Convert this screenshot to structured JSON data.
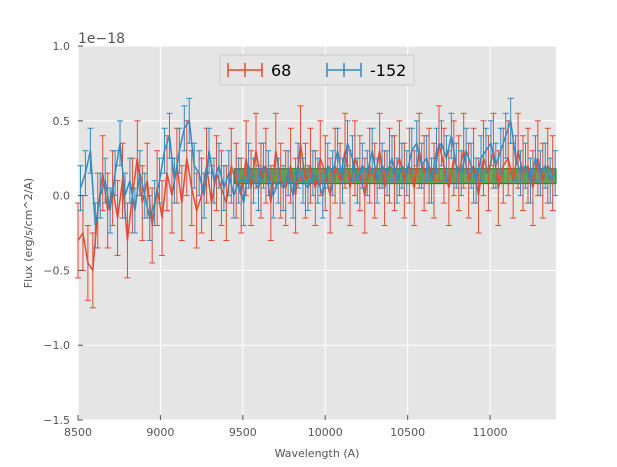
{
  "chart_data": {
    "type": "line",
    "title": "",
    "xlabel": "Wavelength (A)",
    "ylabel": "Flux (erg/s/cm^2/A)",
    "offset_text": "1e−18",
    "xlim": [
      8500,
      11400
    ],
    "ylim": [
      -1.5,
      1.0
    ],
    "xticks": [
      8500,
      9000,
      9500,
      10000,
      10500,
      11000
    ],
    "xtick_labels": [
      "8500",
      "9000",
      "9500",
      "10000",
      "10500",
      "11000"
    ],
    "yticks": [
      -1.5,
      -1.0,
      -0.5,
      0.0,
      0.5,
      1.0
    ],
    "ytick_labels": [
      "−1.5",
      "−1.0",
      "−0.5",
      "0.0",
      "0.5",
      "1.0"
    ],
    "grid": true,
    "legend_position": "top-center",
    "colors": {
      "plot_bg": "#e5e5e5",
      "grid": "#ffffff",
      "series_68": "#e24a33",
      "series_m152": "#348abd",
      "band_fill": "#2e9a2e",
      "band_edge": "#1c7a1c"
    },
    "band": {
      "x_start": 9450,
      "x_end": 11400,
      "y_low": 0.08,
      "y_high": 0.18
    },
    "series": [
      {
        "name": "68",
        "x": [
          8500,
          8530,
          8560,
          8590,
          8620,
          8650,
          8680,
          8710,
          8740,
          8770,
          8800,
          8830,
          8860,
          8890,
          8920,
          8950,
          8980,
          9010,
          9040,
          9070,
          9100,
          9130,
          9160,
          9190,
          9220,
          9250,
          9280,
          9310,
          9340,
          9370,
          9400,
          9430,
          9460,
          9490,
          9520,
          9550,
          9580,
          9610,
          9640,
          9670,
          9700,
          9730,
          9760,
          9790,
          9820,
          9850,
          9880,
          9910,
          9940,
          9970,
          10000,
          10030,
          10060,
          10090,
          10120,
          10150,
          10180,
          10210,
          10240,
          10270,
          10300,
          10330,
          10360,
          10390,
          10420,
          10450,
          10480,
          10510,
          10540,
          10570,
          10600,
          10630,
          10660,
          10690,
          10720,
          10750,
          10780,
          10810,
          10840,
          10870,
          10900,
          10930,
          10960,
          10990,
          11020,
          11050,
          11080,
          11110,
          11140,
          11170,
          11200,
          11230,
          11260,
          11290,
          11320,
          11350,
          11380
        ],
        "y": [
          -0.3,
          -0.25,
          -0.45,
          -0.5,
          -0.1,
          0.15,
          -0.1,
          0.05,
          -0.15,
          0.1,
          -0.3,
          0.0,
          0.25,
          -0.05,
          0.1,
          -0.2,
          0.05,
          -0.15,
          0.15,
          0.0,
          0.2,
          -0.05,
          0.25,
          0.05,
          -0.1,
          0.0,
          0.2,
          -0.05,
          0.15,
          0.05,
          -0.05,
          0.2,
          0.1,
          0.0,
          0.25,
          0.05,
          0.3,
          0.1,
          0.2,
          -0.05,
          0.3,
          0.1,
          0.05,
          0.2,
          0.0,
          0.35,
          0.1,
          0.2,
          0.05,
          0.25,
          0.15,
          0.0,
          0.2,
          0.1,
          0.3,
          0.05,
          0.25,
          0.15,
          0.0,
          0.2,
          0.1,
          0.3,
          0.05,
          0.2,
          0.15,
          0.25,
          0.1,
          0.2,
          0.05,
          0.3,
          0.15,
          0.2,
          0.1,
          0.35,
          0.2,
          0.05,
          0.25,
          0.15,
          0.3,
          0.1,
          0.2,
          0.0,
          0.25,
          0.15,
          0.3,
          0.05,
          0.2,
          0.25,
          0.1,
          0.3,
          0.15,
          0.2,
          0.05,
          0.25,
          0.1,
          0.2,
          0.15
        ],
        "err": 0.25
      },
      {
        "name": "-152",
        "x": [
          8515,
          8545,
          8575,
          8605,
          8635,
          8665,
          8695,
          8725,
          8755,
          8785,
          8815,
          8845,
          8875,
          8905,
          8935,
          8965,
          8995,
          9025,
          9055,
          9085,
          9115,
          9145,
          9175,
          9205,
          9235,
          9265,
          9295,
          9325,
          9355,
          9385,
          9415,
          9445,
          9475,
          9505,
          9535,
          9565,
          9595,
          9625,
          9655,
          9685,
          9715,
          9745,
          9775,
          9805,
          9835,
          9865,
          9895,
          9925,
          9955,
          9985,
          10015,
          10045,
          10075,
          10105,
          10135,
          10165,
          10195,
          10225,
          10255,
          10285,
          10315,
          10345,
          10375,
          10405,
          10435,
          10465,
          10495,
          10525,
          10555,
          10585,
          10615,
          10645,
          10675,
          10705,
          10735,
          10765,
          10795,
          10825,
          10855,
          10885,
          10915,
          10945,
          10975,
          11005,
          11035,
          11065,
          11095,
          11125,
          11155,
          11185,
          11215,
          11245,
          11275,
          11305,
          11335,
          11365,
          11395
        ],
        "y": [
          0.05,
          0.15,
          0.3,
          -0.2,
          0.0,
          0.1,
          -0.1,
          0.15,
          0.35,
          0.0,
          0.1,
          -0.1,
          0.15,
          0.0,
          -0.15,
          -0.05,
          0.1,
          0.3,
          0.4,
          0.1,
          0.3,
          0.45,
          0.5,
          0.2,
          0.15,
          0.0,
          0.3,
          0.1,
          0.2,
          0.05,
          0.15,
          0.0,
          0.1,
          -0.05,
          0.2,
          0.1,
          0.05,
          0.2,
          0.15,
          0.0,
          0.1,
          0.05,
          0.15,
          0.0,
          0.2,
          0.1,
          0.05,
          0.15,
          0.1,
          0.0,
          0.2,
          0.15,
          0.3,
          0.1,
          0.35,
          0.25,
          0.1,
          0.2,
          0.15,
          0.3,
          0.1,
          0.2,
          0.15,
          0.25,
          0.1,
          0.2,
          0.15,
          0.3,
          0.35,
          0.2,
          0.25,
          0.1,
          0.3,
          0.35,
          0.25,
          0.4,
          0.2,
          0.15,
          0.3,
          0.2,
          0.1,
          0.25,
          0.3,
          0.35,
          0.2,
          0.3,
          0.4,
          0.5,
          0.25,
          0.15,
          0.2,
          0.1,
          0.25,
          0.15,
          0.2,
          0.1,
          0.15
        ],
        "err": 0.15
      }
    ]
  }
}
